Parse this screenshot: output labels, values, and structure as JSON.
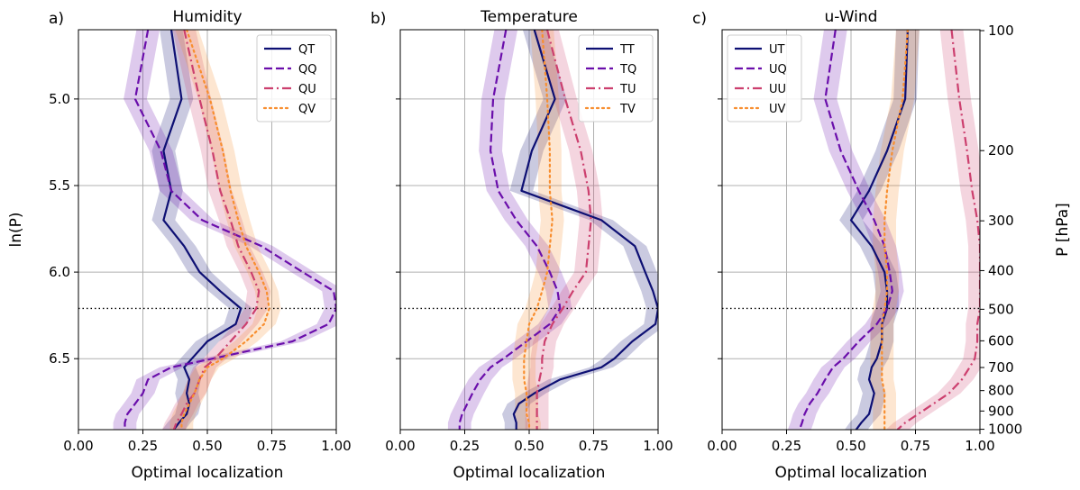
{
  "chart_data": {
    "type": "line",
    "colors": {
      "T": "#0d0f73",
      "Q": "#6a0eab",
      "U": "#cc3f6e",
      "V": "#f88e2f"
    },
    "styles": {
      "T": "solid",
      "Q": "dashed",
      "U": "dashdot",
      "V": "dotted"
    },
    "ylabel": "ln(P)",
    "y2label": "P [hPa]",
    "xlabel": "Optimal localization",
    "xlim": [
      0,
      1
    ],
    "ylim": [
      6.91,
      4.6
    ],
    "xticks": [
      "0.00",
      "0.25",
      "0.50",
      "0.75",
      "1.00"
    ],
    "yticks": [
      "5.0",
      "5.5",
      "6.0",
      "6.5"
    ],
    "p_ticks": [
      "100",
      "200",
      "300",
      "400",
      "500",
      "600",
      "700",
      "800",
      "900",
      "1000"
    ],
    "reference_line_lnP": 6.21,
    "grid": true,
    "levels_lnP": [
      4.6,
      5.0,
      5.3,
      5.53,
      5.7,
      5.85,
      6.0,
      6.11,
      6.21,
      6.3,
      6.4,
      6.5,
      6.55,
      6.62,
      6.7,
      6.76,
      6.82,
      6.87,
      6.91
    ],
    "panels": [
      {
        "label": "a)",
        "title": "Humidity",
        "legend_position": "upper right",
        "series": [
          {
            "name": "QT",
            "key": "T",
            "values": [
              0.36,
              0.4,
              0.33,
              0.36,
              0.33,
              0.41,
              0.47,
              0.55,
              0.63,
              0.61,
              0.5,
              0.44,
              0.41,
              0.43,
              0.42,
              0.43,
              0.42,
              0.39,
              0.37
            ]
          },
          {
            "name": "QQ",
            "key": "Q",
            "values": [
              0.27,
              0.22,
              0.32,
              0.36,
              0.48,
              0.71,
              0.87,
              0.99,
              1.0,
              0.97,
              0.83,
              0.52,
              0.36,
              0.27,
              0.25,
              0.22,
              0.19,
              0.18,
              0.18
            ]
          },
          {
            "name": "QU",
            "key": "U",
            "values": [
              0.41,
              0.47,
              0.52,
              0.55,
              0.59,
              0.62,
              0.67,
              0.7,
              0.69,
              0.65,
              0.59,
              0.53,
              0.49,
              0.47,
              0.45,
              0.42,
              0.4,
              0.38,
              0.37
            ]
          },
          {
            "name": "QV",
            "key": "V",
            "values": [
              0.42,
              0.51,
              0.56,
              0.59,
              0.62,
              0.65,
              0.7,
              0.73,
              0.74,
              0.72,
              0.65,
              0.56,
              0.5,
              0.47,
              0.45,
              0.43,
              0.41,
              0.4,
              0.4
            ]
          }
        ]
      },
      {
        "label": "b)",
        "title": "Temperature",
        "legend_position": "upper right",
        "series": [
          {
            "name": "TT",
            "key": "T",
            "values": [
              0.52,
              0.6,
              0.51,
              0.47,
              0.78,
              0.91,
              0.95,
              0.98,
              1.0,
              0.99,
              0.9,
              0.83,
              0.78,
              0.62,
              0.52,
              0.46,
              0.44,
              0.45,
              0.45
            ]
          },
          {
            "name": "TQ",
            "key": "Q",
            "values": [
              0.41,
              0.36,
              0.35,
              0.38,
              0.45,
              0.53,
              0.58,
              0.61,
              0.62,
              0.58,
              0.49,
              0.4,
              0.35,
              0.31,
              0.28,
              0.26,
              0.24,
              0.23,
              0.23
            ]
          },
          {
            "name": "TU",
            "key": "U",
            "values": [
              0.57,
              0.64,
              0.7,
              0.73,
              0.74,
              0.73,
              0.72,
              0.67,
              0.63,
              0.59,
              0.56,
              0.55,
              0.55,
              0.54,
              0.53,
              0.53,
              0.53,
              0.53,
              0.53
            ]
          },
          {
            "name": "TV",
            "key": "V",
            "values": [
              0.55,
              0.57,
              0.58,
              0.58,
              0.59,
              0.58,
              0.57,
              0.55,
              0.53,
              0.5,
              0.49,
              0.48,
              0.48,
              0.48,
              0.49,
              0.49,
              0.49,
              0.5,
              0.5
            ]
          }
        ]
      },
      {
        "label": "c)",
        "title": "u-Wind",
        "legend_position": "upper left",
        "series": [
          {
            "name": "UT",
            "key": "T",
            "values": [
              0.72,
              0.71,
              0.64,
              0.57,
              0.5,
              0.58,
              0.63,
              0.64,
              0.64,
              0.62,
              0.62,
              0.6,
              0.58,
              0.57,
              0.59,
              0.58,
              0.57,
              0.54,
              0.52
            ]
          },
          {
            "name": "UQ",
            "key": "Q",
            "values": [
              0.44,
              0.4,
              0.46,
              0.53,
              0.59,
              0.63,
              0.65,
              0.66,
              0.64,
              0.6,
              0.53,
              0.47,
              0.43,
              0.4,
              0.37,
              0.34,
              0.32,
              0.31,
              0.3
            ]
          },
          {
            "name": "UU",
            "key": "U",
            "values": [
              0.89,
              0.92,
              0.95,
              0.97,
              0.99,
              1.0,
              1.0,
              1.0,
              1.0,
              0.99,
              0.99,
              0.98,
              0.96,
              0.93,
              0.88,
              0.82,
              0.76,
              0.71,
              0.68
            ]
          },
          {
            "name": "UV",
            "key": "V",
            "values": [
              0.72,
              0.7,
              0.66,
              0.64,
              0.63,
              0.63,
              0.64,
              0.64,
              0.63,
              0.62,
              0.62,
              0.62,
              0.62,
              0.62,
              0.63,
              0.63,
              0.63,
              0.63,
              0.63
            ]
          }
        ]
      }
    ]
  }
}
